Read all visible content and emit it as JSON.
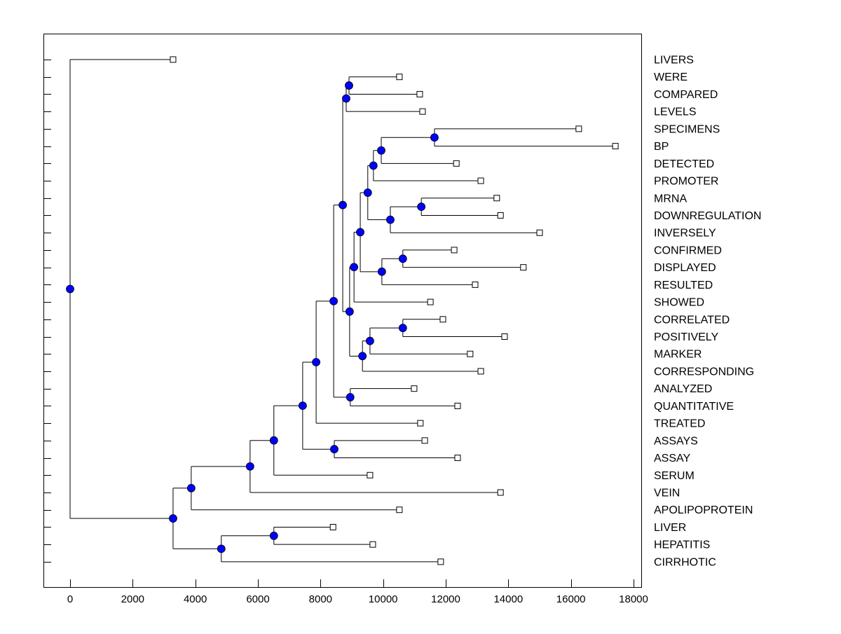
{
  "chart_data": {
    "type": "dendrogram",
    "orientation": "horizontal",
    "xlim": [
      -850,
      18250
    ],
    "xticks": [
      0,
      2000,
      4000,
      6000,
      8000,
      10000,
      12000,
      14000,
      16000,
      18000
    ],
    "grid": false,
    "colors": {
      "node": "#0000ff",
      "line": "#000000",
      "leaf_marker": "#ffffff"
    },
    "tree": {
      "value": 0,
      "children": [
        {
          "label": "LIVERS",
          "value": 3290
        },
        {
          "value": 3290,
          "children": [
            {
              "value": 3870,
              "children": [
                {
                  "value": 5750,
                  "children": [
                    {
                      "value": 6510,
                      "children": [
                        {
                          "value": 7430,
                          "children": [
                            {
                              "value": 7860,
                              "children": [
                                {
                                  "value": 8420,
                                  "children": [
                                    {
                                      "value": 8710,
                                      "children": [
                                        {
                                          "value": 8820,
                                          "children": [
                                            {
                                              "value": 8910,
                                              "children": [
                                                {
                                                  "label": "WERE",
                                                  "value": 10520
                                                },
                                                {
                                                  "label": "COMPARED",
                                                  "value": 11170
                                                }
                                              ]
                                            },
                                            {
                                              "label": "LEVELS",
                                              "value": 11260
                                            }
                                          ]
                                        },
                                        {
                                          "value": 8930,
                                          "children": [
                                            {
                                              "value": 9070,
                                              "children": [
                                                {
                                                  "value": 9270,
                                                  "children": [
                                                    {
                                                      "value": 9510,
                                                      "children": [
                                                        {
                                                          "value": 9690,
                                                          "children": [
                                                            {
                                                              "value": 9940,
                                                              "children": [
                                                                {
                                                                  "value": 11640,
                                                                  "children": [
                                                                    {
                                                                      "label": "SPECIMENS",
                                                                      "value": 16250
                                                                    },
                                                                    {
                                                                      "label": "BP",
                                                                      "value": 17420
                                                                    }
                                                                  ]
                                                                },
                                                                {
                                                                  "label": "DETECTED",
                                                                  "value": 12340
                                                                }
                                                              ]
                                                            },
                                                            {
                                                              "label": "PROMOTER",
                                                              "value": 13120
                                                            }
                                                          ]
                                                        },
                                                        {
                                                          "value": 10230,
                                                          "children": [
                                                            {
                                                              "value": 11220,
                                                              "children": [
                                                                {
                                                                  "label": "MRNA",
                                                                  "value": 13630
                                                                },
                                                                {
                                                                  "label": "DOWNREGULATION",
                                                                  "value": 13750
                                                                }
                                                              ]
                                                            },
                                                            {
                                                              "label": "INVERSELY",
                                                              "value": 15000
                                                            }
                                                          ]
                                                        }
                                                      ]
                                                    },
                                                    {
                                                      "value": 9960,
                                                      "children": [
                                                        {
                                                          "value": 10630,
                                                          "children": [
                                                            {
                                                              "label": "CONFIRMED",
                                                              "value": 12270
                                                            },
                                                            {
                                                              "label": "DISPLAYED",
                                                              "value": 14480
                                                            }
                                                          ]
                                                        },
                                                        {
                                                          "label": "RESULTED",
                                                          "value": 12940
                                                        }
                                                      ]
                                                    }
                                                  ]
                                                },
                                                {
                                                  "label": "SHOWED",
                                                  "value": 11510
                                                }
                                              ]
                                            },
                                            {
                                              "value": 9340,
                                              "children": [
                                                {
                                                  "value": 9580,
                                                  "children": [
                                                    {
                                                      "value": 10630,
                                                      "children": [
                                                        {
                                                          "label": "CORRELATED",
                                                          "value": 11910
                                                        },
                                                        {
                                                          "label": "POSITIVELY",
                                                          "value": 13880
                                                        }
                                                      ]
                                                    },
                                                    {
                                                      "label": "MARKER",
                                                      "value": 12780
                                                    }
                                                  ]
                                                },
                                                {
                                                  "label": "CORRESPONDING",
                                                  "value": 13120
                                                }
                                              ]
                                            }
                                          ]
                                        }
                                      ]
                                    },
                                    {
                                      "value": 8950,
                                      "children": [
                                        {
                                          "label": "ANALYZED",
                                          "value": 10990
                                        },
                                        {
                                          "label": "QUANTITATIVE",
                                          "value": 12380
                                        }
                                      ]
                                    }
                                  ]
                                },
                                {
                                  "label": "TREATED",
                                  "value": 11190
                                }
                              ]
                            },
                            {
                              "value": 8440,
                              "children": [
                                {
                                  "label": "ASSAYS",
                                  "value": 11330
                                },
                                {
                                  "label": "ASSAY",
                                  "value": 12380
                                }
                              ]
                            }
                          ]
                        },
                        {
                          "label": "SERUM",
                          "value": 9580
                        }
                      ]
                    },
                    {
                      "label": "VEIN",
                      "value": 13750
                    }
                  ]
                },
                {
                  "label": "APOLIPOPROTEIN",
                  "value": 10520
                }
              ]
            },
            {
              "value": 4830,
              "children": [
                {
                  "value": 6510,
                  "children": [
                    {
                      "label": "LIVER",
                      "value": 8400
                    },
                    {
                      "label": "HEPATITIS",
                      "value": 9670
                    }
                  ]
                },
                {
                  "label": "CIRRHOTIC",
                  "value": 11840
                }
              ]
            }
          ]
        }
      ]
    }
  }
}
